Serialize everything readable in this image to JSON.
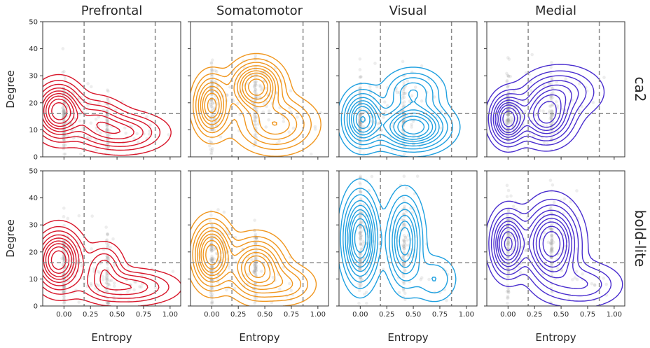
{
  "chart_data": {
    "type": "kde-contour-scatter-grid",
    "columns": [
      "Prefrontal",
      "Somatomotor",
      "Visual",
      "Medial"
    ],
    "rows": [
      "ca2",
      "bold-lite"
    ],
    "xlabel": "Entropy",
    "ylabel": "Degree",
    "xlim": [
      -0.2,
      1.1
    ],
    "ylim": [
      0,
      50
    ],
    "xticks": [
      "0.00",
      "0.25",
      "0.50",
      "0.75",
      "1.00"
    ],
    "yticks": [
      "0",
      "10",
      "20",
      "30",
      "40",
      "50"
    ],
    "reference_lines": {
      "vertical_entropy": [
        0.19,
        0.86
      ],
      "horizontal_degree": 16
    },
    "colors": {
      "Prefrontal": "#d8172b",
      "Somatomotor": "#f0961e",
      "Visual": "#1fa0e0",
      "Medial": "#4a2ecf",
      "points": "#9a9a9a",
      "reference": "#8a8a8a"
    },
    "point_columns_entropy": [
      0.0,
      0.41
    ],
    "panels": [
      {
        "row": "ca2",
        "region": "Prefrontal",
        "density_peaks": [
          {
            "entropy": -0.05,
            "degree": 17,
            "sx": 0.12,
            "sy": 5.5,
            "w": 1.0
          },
          {
            "entropy": 0.55,
            "degree": 9,
            "sx": 0.22,
            "sy": 4.0,
            "w": 0.45
          },
          {
            "entropy": 0.3,
            "degree": 14,
            "sx": 0.15,
            "sy": 4.5,
            "w": 0.35
          }
        ]
      },
      {
        "row": "ca2",
        "region": "Somatomotor",
        "density_peaks": [
          {
            "entropy": 0.0,
            "degree": 19,
            "sx": 0.09,
            "sy": 6.0,
            "w": 0.8
          },
          {
            "entropy": 0.42,
            "degree": 26,
            "sx": 0.13,
            "sy": 5.0,
            "w": 1.0
          },
          {
            "entropy": 0.6,
            "degree": 12,
            "sx": 0.2,
            "sy": 5.5,
            "w": 0.5
          }
        ]
      },
      {
        "row": "ca2",
        "region": "Visual",
        "density_peaks": [
          {
            "entropy": 0.02,
            "degree": 14,
            "sx": 0.1,
            "sy": 5.5,
            "w": 0.85
          },
          {
            "entropy": 0.5,
            "degree": 11,
            "sx": 0.18,
            "sy": 4.5,
            "w": 1.0
          },
          {
            "entropy": 0.5,
            "degree": 24,
            "sx": 0.15,
            "sy": 4.5,
            "w": 0.4
          }
        ]
      },
      {
        "row": "ca2",
        "region": "Medial",
        "density_peaks": [
          {
            "entropy": 0.0,
            "degree": 14,
            "sx": 0.09,
            "sy": 5.0,
            "w": 1.0
          },
          {
            "entropy": 0.36,
            "degree": 15,
            "sx": 0.14,
            "sy": 5.5,
            "w": 0.8
          },
          {
            "entropy": 0.5,
            "degree": 24,
            "sx": 0.2,
            "sy": 5.0,
            "w": 0.4
          }
        ]
      },
      {
        "row": "bold-lite",
        "region": "Prefrontal",
        "density_peaks": [
          {
            "entropy": -0.05,
            "degree": 17,
            "sx": 0.12,
            "sy": 6.0,
            "w": 1.0
          },
          {
            "entropy": 0.6,
            "degree": 7,
            "sx": 0.25,
            "sy": 3.5,
            "w": 0.4
          },
          {
            "entropy": 0.38,
            "degree": 14,
            "sx": 0.1,
            "sy": 5.0,
            "w": 0.35
          }
        ]
      },
      {
        "row": "bold-lite",
        "region": "Somatomotor",
        "density_peaks": [
          {
            "entropy": 0.0,
            "degree": 19,
            "sx": 0.1,
            "sy": 6.5,
            "w": 1.0
          },
          {
            "entropy": 0.42,
            "degree": 14,
            "sx": 0.14,
            "sy": 6.0,
            "w": 0.8
          },
          {
            "entropy": 0.7,
            "degree": 8,
            "sx": 0.15,
            "sy": 4.0,
            "w": 0.3
          }
        ]
      },
      {
        "row": "bold-lite",
        "region": "Visual",
        "density_peaks": [
          {
            "entropy": 0.0,
            "degree": 25,
            "sx": 0.09,
            "sy": 9.0,
            "w": 1.0
          },
          {
            "entropy": 0.42,
            "degree": 24,
            "sx": 0.09,
            "sy": 9.0,
            "w": 0.7
          },
          {
            "entropy": 0.7,
            "degree": 10,
            "sx": 0.12,
            "sy": 5.0,
            "w": 0.2
          }
        ]
      },
      {
        "row": "bold-lite",
        "region": "Medial",
        "density_peaks": [
          {
            "entropy": 0.0,
            "degree": 23,
            "sx": 0.09,
            "sy": 6.5,
            "w": 0.9
          },
          {
            "entropy": 0.41,
            "degree": 23,
            "sx": 0.14,
            "sy": 8.0,
            "w": 1.0
          },
          {
            "entropy": 0.7,
            "degree": 8,
            "sx": 0.2,
            "sy": 4.5,
            "w": 0.3
          }
        ]
      }
    ]
  }
}
